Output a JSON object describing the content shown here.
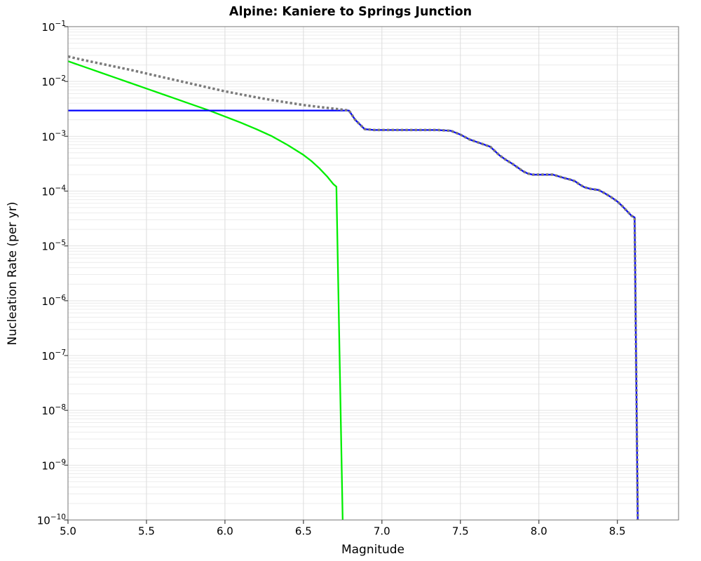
{
  "chart_data": {
    "type": "line",
    "title": "Alpine: Kaniere to Springs Junction",
    "xlabel": "Magnitude",
    "ylabel": "Nucleation Rate (per yr)",
    "xlim": [
      5.0,
      8.89
    ],
    "y_top_exp": -1,
    "y_bottom_exp": -10,
    "x_ticks": [
      {
        "v": 5.0,
        "label": "5.0"
      },
      {
        "v": 5.5,
        "label": "5.5"
      },
      {
        "v": 6.0,
        "label": "6.0"
      },
      {
        "v": 6.5,
        "label": "6.5"
      },
      {
        "v": 7.0,
        "label": "7.0"
      },
      {
        "v": 7.5,
        "label": "7.5"
      },
      {
        "v": 8.0,
        "label": "8.0"
      },
      {
        "v": 8.5,
        "label": "8.5"
      }
    ],
    "y_tick_exponents": [
      -1,
      -2,
      -3,
      -4,
      -5,
      -6,
      -7,
      -8,
      -9,
      -10
    ],
    "grid": {
      "vertical_at_x_ticks": true,
      "horizontal_log_minor": true,
      "horizontal_log_major": true
    },
    "legend": "none",
    "colors": {
      "truncated_green": "#00ee00",
      "rate_blue": "#0000ff",
      "gr_dotted_gray": "#7a7a7a"
    },
    "series": [
      {
        "name": "green-truncated-mfd-line",
        "color": "#00ee00",
        "style": "solid",
        "width": 2.3,
        "points_log10": [
          [
            5.0,
            -1.63
          ],
          [
            5.1,
            -1.73
          ],
          [
            5.2,
            -1.83
          ],
          [
            5.3,
            -1.93
          ],
          [
            5.4,
            -2.03
          ],
          [
            5.5,
            -2.13
          ],
          [
            5.6,
            -2.23
          ],
          [
            5.7,
            -2.33
          ],
          [
            5.8,
            -2.43
          ],
          [
            5.9,
            -2.53
          ],
          [
            6.0,
            -2.64
          ],
          [
            6.1,
            -2.75
          ],
          [
            6.2,
            -2.87
          ],
          [
            6.3,
            -3.0
          ],
          [
            6.4,
            -3.16
          ],
          [
            6.5,
            -3.34
          ],
          [
            6.55,
            -3.45
          ],
          [
            6.6,
            -3.58
          ],
          [
            6.65,
            -3.73
          ],
          [
            6.69,
            -3.87
          ],
          [
            6.71,
            -3.92
          ],
          [
            6.75,
            -10.0
          ]
        ]
      },
      {
        "name": "blue-rate-mfd-line",
        "color": "#0000ff",
        "style": "solid",
        "width": 2.3,
        "points_log10": [
          [
            5.0,
            -2.53
          ],
          [
            6.79,
            -2.53
          ],
          [
            6.83,
            -2.7
          ],
          [
            6.89,
            -2.87
          ],
          [
            6.95,
            -2.885
          ],
          [
            7.35,
            -2.885
          ],
          [
            7.44,
            -2.9
          ],
          [
            7.5,
            -2.97
          ],
          [
            7.56,
            -3.06
          ],
          [
            7.62,
            -3.12
          ],
          [
            7.69,
            -3.19
          ],
          [
            7.72,
            -3.27
          ],
          [
            7.75,
            -3.35
          ],
          [
            7.79,
            -3.43
          ],
          [
            7.83,
            -3.5
          ],
          [
            7.86,
            -3.56
          ],
          [
            7.9,
            -3.64
          ],
          [
            7.93,
            -3.68
          ],
          [
            7.96,
            -3.7
          ],
          [
            8.09,
            -3.7
          ],
          [
            8.16,
            -3.76
          ],
          [
            8.2,
            -3.79
          ],
          [
            8.23,
            -3.82
          ],
          [
            8.26,
            -3.88
          ],
          [
            8.29,
            -3.93
          ],
          [
            8.33,
            -3.96
          ],
          [
            8.38,
            -3.98
          ],
          [
            8.42,
            -4.04
          ],
          [
            8.46,
            -4.11
          ],
          [
            8.5,
            -4.19
          ],
          [
            8.53,
            -4.27
          ],
          [
            8.56,
            -4.36
          ],
          [
            8.59,
            -4.45
          ],
          [
            8.61,
            -4.48
          ],
          [
            8.63,
            -10.0
          ]
        ]
      },
      {
        "name": "gray-gr-dotted-line",
        "color": "#7a7a7a",
        "style": "dotted",
        "width": 3.5,
        "points_log10": [
          [
            5.0,
            -1.545
          ],
          [
            5.1,
            -1.61
          ],
          [
            5.2,
            -1.67
          ],
          [
            5.3,
            -1.73
          ],
          [
            5.4,
            -1.79
          ],
          [
            5.5,
            -1.855
          ],
          [
            5.6,
            -1.92
          ],
          [
            5.7,
            -1.985
          ],
          [
            5.8,
            -2.05
          ],
          [
            5.9,
            -2.115
          ],
          [
            6.0,
            -2.18
          ],
          [
            6.1,
            -2.235
          ],
          [
            6.2,
            -2.29
          ],
          [
            6.3,
            -2.34
          ],
          [
            6.4,
            -2.385
          ],
          [
            6.5,
            -2.43
          ],
          [
            6.6,
            -2.465
          ],
          [
            6.7,
            -2.497
          ],
          [
            6.79,
            -2.53
          ],
          [
            6.83,
            -2.7
          ],
          [
            6.89,
            -2.87
          ],
          [
            6.95,
            -2.885
          ],
          [
            7.35,
            -2.885
          ],
          [
            7.44,
            -2.9
          ],
          [
            7.5,
            -2.97
          ],
          [
            7.56,
            -3.06
          ],
          [
            7.62,
            -3.12
          ],
          [
            7.69,
            -3.19
          ],
          [
            7.72,
            -3.27
          ],
          [
            7.75,
            -3.35
          ],
          [
            7.79,
            -3.43
          ],
          [
            7.83,
            -3.5
          ],
          [
            7.86,
            -3.56
          ],
          [
            7.9,
            -3.64
          ],
          [
            7.93,
            -3.68
          ],
          [
            7.96,
            -3.7
          ],
          [
            8.09,
            -3.7
          ],
          [
            8.16,
            -3.76
          ],
          [
            8.2,
            -3.79
          ],
          [
            8.23,
            -3.82
          ],
          [
            8.26,
            -3.88
          ],
          [
            8.29,
            -3.93
          ],
          [
            8.33,
            -3.96
          ],
          [
            8.38,
            -3.98
          ],
          [
            8.42,
            -4.04
          ],
          [
            8.46,
            -4.11
          ],
          [
            8.5,
            -4.19
          ],
          [
            8.53,
            -4.27
          ],
          [
            8.56,
            -4.36
          ],
          [
            8.59,
            -4.45
          ],
          [
            8.61,
            -4.48
          ],
          [
            8.63,
            -10.0
          ]
        ]
      }
    ]
  }
}
